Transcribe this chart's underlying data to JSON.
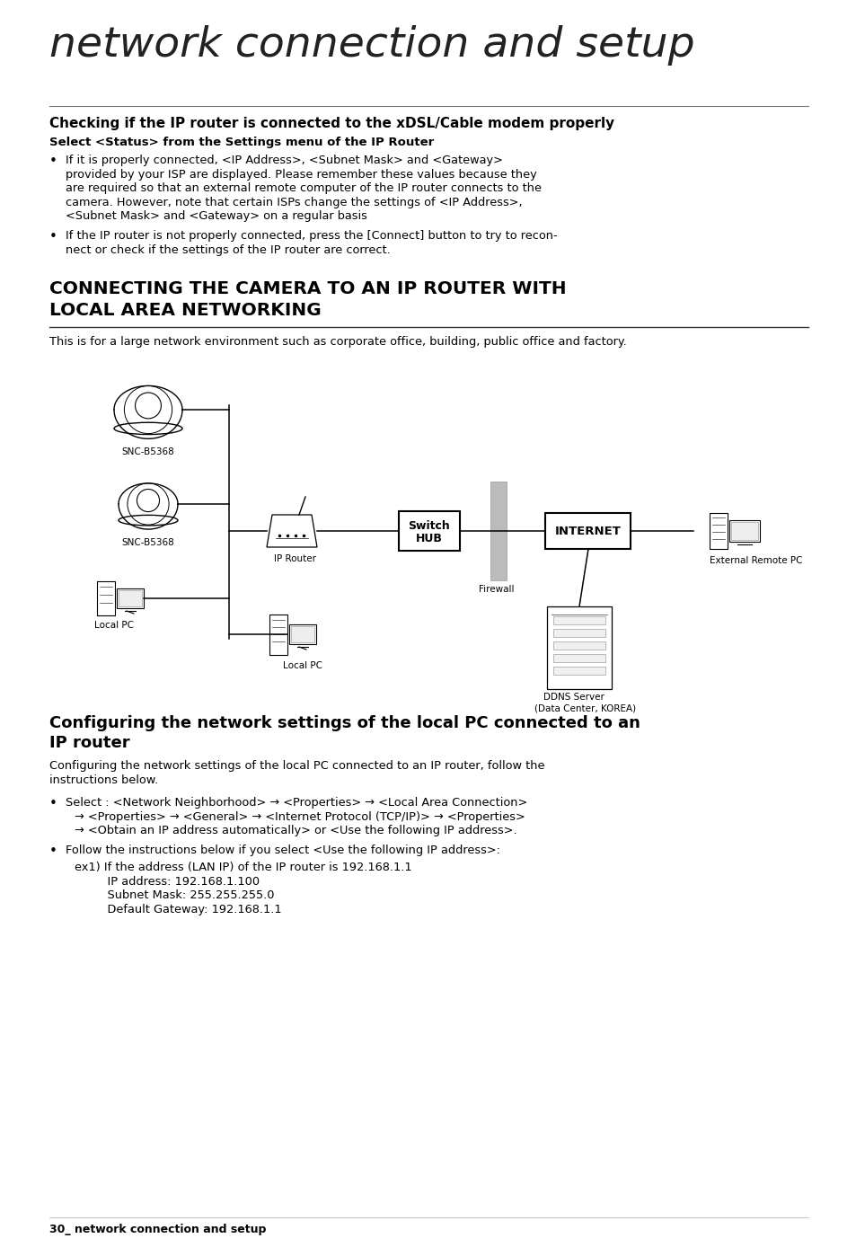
{
  "bg_color": "#ffffff",
  "title_text": "network connection and setup",
  "s1_head": "Checking if the IP router is connected to the xDSL/Cable modem properly",
  "s1_subhead": "Select <Status> from the Settings menu of the IP Router",
  "b1_line1": "If it is properly connected, <IP Address>, <Subnet Mask> and <Gateway>",
  "b1_line2": "provided by your ISP are displayed. Please remember these values because they",
  "b1_line3": "are required so that an external remote computer of the IP router connects to the",
  "b1_line4": "camera. However, note that certain ISPs change the settings of <IP Address>,",
  "b1_line5": "<Subnet Mask> and <Gateway> on a regular basis",
  "b2_line1": "If the IP router is not properly connected, press the [Connect] button to try to recon-",
  "b2_line2": "nect or check if the settings of the IP router are correct.",
  "s2_head1": "CONNECTING THE CAMERA TO AN IP ROUTER WITH",
  "s2_head2": "LOCAL AREA NETWORKING",
  "s2_desc": "This is for a large network environment such as corporate office, building, public office and factory.",
  "s3_head1": "Configuring the network settings of the local PC connected to an",
  "s3_head2": "IP router",
  "s3_desc1": "Configuring the network settings of the local PC connected to an IP router, follow the",
  "s3_desc2": "instructions below.",
  "b3_line1": "Select : <Network Neighborhood> → <Properties> → <Local Area Connection>",
  "b3_line2": "→ <Properties> → <General> → <Internet Protocol (TCP/IP)> → <Properties>",
  "b3_line3": "→ <Obtain an IP address automatically> or <Use the following IP address>.",
  "b4_line1": "Follow the instructions below if you select <Use the following IP address>:",
  "ex1_line1": "ex1) If the address (LAN IP) of the IP router is 192.168.1.1",
  "ex1_line2": "    IP address: 192.168.1.100",
  "ex1_line3": "    Subnet Mask: 255.255.255.0",
  "ex1_line4": "    Default Gateway: 192.168.1.1",
  "footer": "30_ network connection and setup"
}
